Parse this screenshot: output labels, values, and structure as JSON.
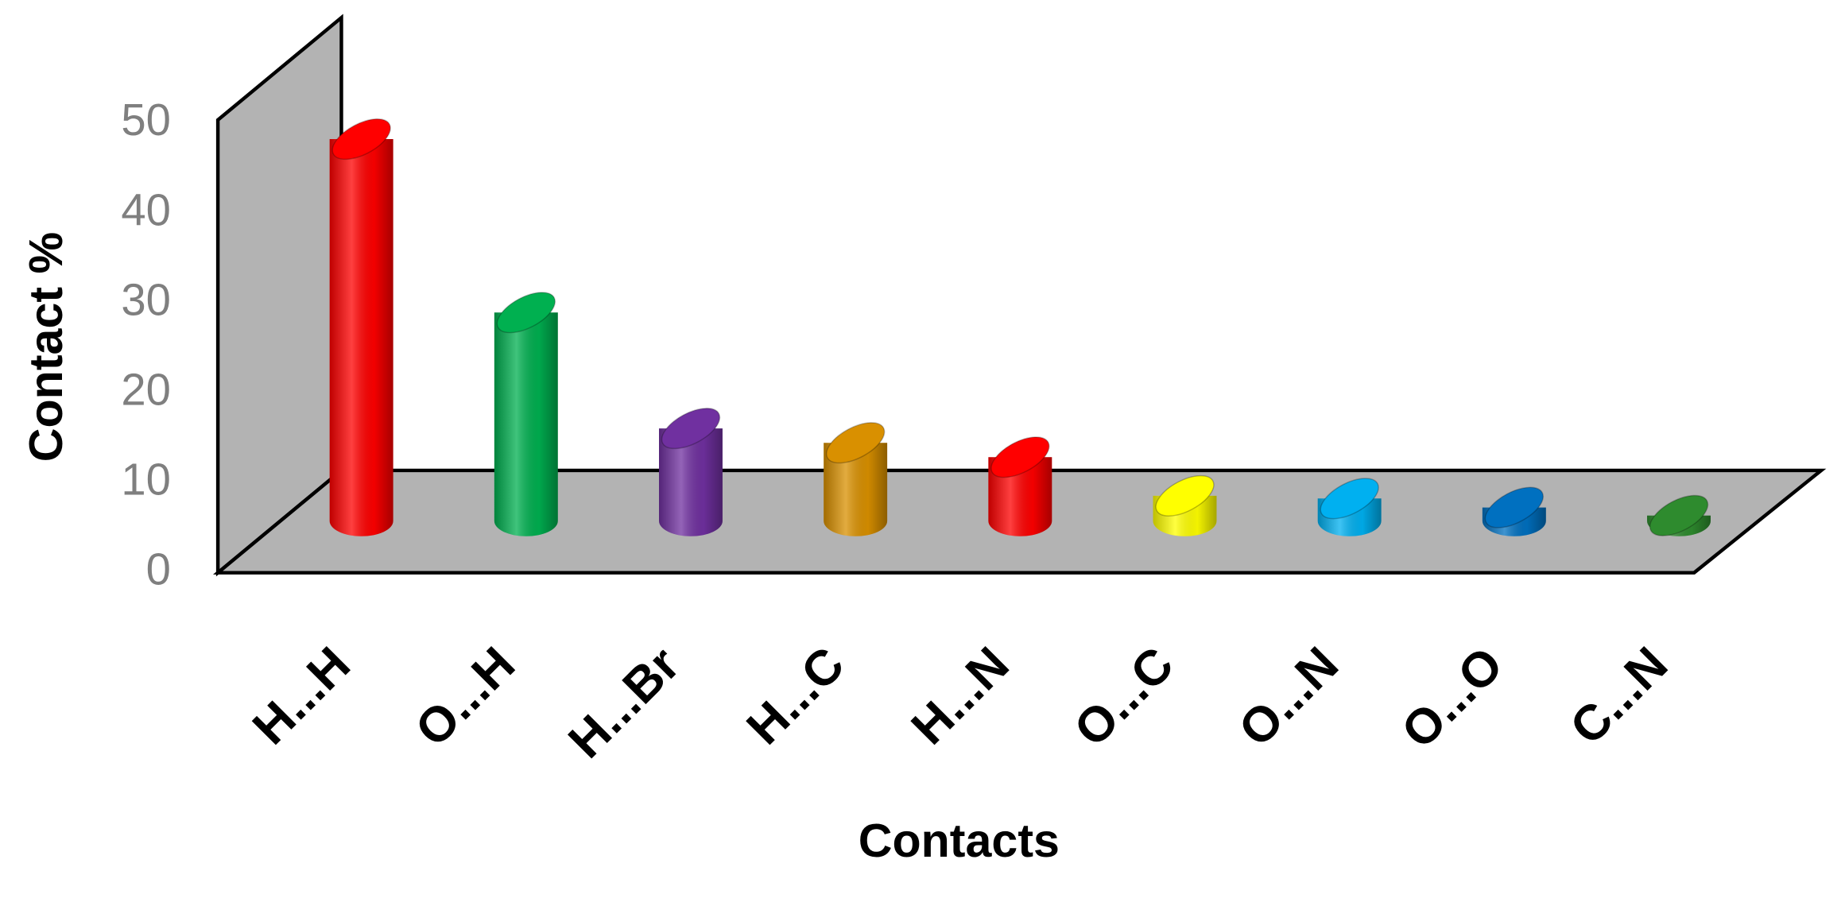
{
  "chart_data": {
    "type": "bar3d",
    "y_label": "Contact %",
    "x_label": "Contacts",
    "categories": [
      "H...H",
      "O...H",
      "H...Br",
      "H...C",
      "H...N",
      "O...C",
      "O...N",
      "O...O",
      "C...N"
    ],
    "values": [
      42.5,
      23.2,
      10.3,
      8.7,
      7.1,
      2.8,
      2.5,
      1.5,
      0.6
    ],
    "colors": [
      "#ff0000",
      "#00b050",
      "#7030a0",
      "#d99000",
      "#ff0000",
      "#ffff00",
      "#00b0f0",
      "#0070c0",
      "#2e8b2e"
    ],
    "ylim": [
      0,
      50
    ],
    "yticks": [
      0,
      10,
      20,
      30,
      40,
      50
    ]
  }
}
